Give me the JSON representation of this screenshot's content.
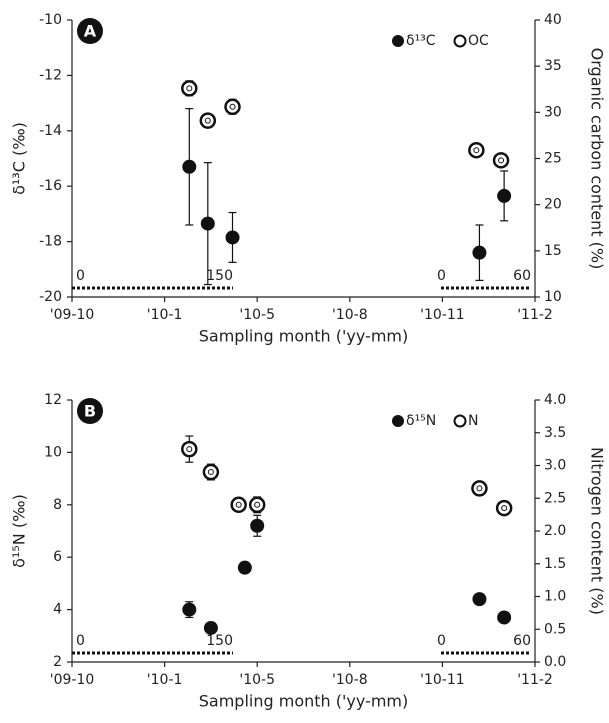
{
  "chart_data": [
    {
      "type": "scatter",
      "panel_label": "A",
      "xlabel": "Sampling month ('yy-mm)",
      "ylabel": "δ¹³C (‰)",
      "y2label": "Organic carbon content (%)",
      "xlim": [
        0,
        15
      ],
      "xticks": [
        {
          "value": 0,
          "label": "'09-10"
        },
        {
          "value": 3,
          "label": "'10-1"
        },
        {
          "value": 6,
          "label": "'10-5"
        },
        {
          "value": 9,
          "label": "'10-8"
        },
        {
          "value": 12,
          "label": "'10-11"
        },
        {
          "value": 15,
          "label": "'11-2"
        }
      ],
      "ylim": [
        -20,
        -10
      ],
      "yticks": [
        -20,
        -18,
        -16,
        -14,
        -12,
        -10
      ],
      "y2lim": [
        10,
        40
      ],
      "y2ticks": [
        10,
        15,
        20,
        25,
        30,
        35,
        40
      ],
      "series": [
        {
          "name": "δ¹³C",
          "marker": "filled",
          "color": "#111111",
          "x": [
            3.8,
            4.4,
            5.2,
            13.2,
            14.0
          ],
          "values": [
            -15.3,
            -17.35,
            -17.85,
            -18.4,
            -16.35
          ],
          "errors": [
            2.1,
            2.2,
            0.9,
            1.0,
            0.9
          ]
        },
        {
          "name": "OC",
          "marker": "open",
          "color": "#111111",
          "axis": "y2",
          "x": [
            3.8,
            4.4,
            5.2,
            13.1,
            13.9
          ],
          "values": [
            32.6,
            29.1,
            30.6,
            25.9,
            24.8
          ],
          "errors": [
            0.8,
            0.7,
            0.8,
            0.3,
            0.4
          ]
        }
      ],
      "annotations": [
        "0",
        "150",
        "0",
        "60"
      ]
    },
    {
      "type": "scatter",
      "panel_label": "B",
      "xlabel": "Sampling month ('yy-mm)",
      "ylabel": "δ¹⁵N (‰)",
      "y2label": "Nitrogen content (%)",
      "xlim": [
        0,
        15
      ],
      "xticks": [
        {
          "value": 0,
          "label": "'09-10"
        },
        {
          "value": 3,
          "label": "'10-1"
        },
        {
          "value": 6,
          "label": "'10-5"
        },
        {
          "value": 9,
          "label": "'10-8"
        },
        {
          "value": 12,
          "label": "'10-11"
        },
        {
          "value": 15,
          "label": "'11-2"
        }
      ],
      "ylim": [
        2,
        12
      ],
      "yticks": [
        2,
        4,
        6,
        8,
        10,
        12
      ],
      "y2lim": [
        0,
        4
      ],
      "y2ticks": [
        {
          "value": 0,
          "label": "0.0"
        },
        {
          "value": 0.5,
          "label": "0.5"
        },
        {
          "value": 1,
          "label": "1.0"
        },
        {
          "value": 1.5,
          "label": "1.5"
        },
        {
          "value": 2,
          "label": "2.0"
        },
        {
          "value": 2.5,
          "label": "2.5"
        },
        {
          "value": 3,
          "label": "3.0"
        },
        {
          "value": 3.5,
          "label": "3.5"
        },
        {
          "value": 4,
          "label": "4.0"
        }
      ],
      "series": [
        {
          "name": "δ¹⁵N",
          "marker": "filled",
          "color": "#111111",
          "x": [
            3.8,
            4.5,
            5.6,
            6.0,
            13.2,
            14.0
          ],
          "values": [
            4.0,
            3.3,
            5.6,
            7.2,
            4.4,
            3.7
          ],
          "errors": [
            0.3,
            0.2,
            0.1,
            0.4,
            0.1,
            0.1
          ]
        },
        {
          "name": "N",
          "marker": "open",
          "color": "#111111",
          "axis": "y2",
          "x": [
            3.8,
            4.5,
            5.4,
            6.0,
            13.2,
            14.0
          ],
          "values": [
            3.25,
            2.9,
            2.4,
            2.4,
            2.65,
            2.35
          ],
          "errors": [
            0.2,
            0.12,
            0.05,
            0.12,
            0.05,
            0.05
          ]
        }
      ],
      "annotations": [
        "0",
        "150",
        "0",
        "60"
      ]
    }
  ]
}
